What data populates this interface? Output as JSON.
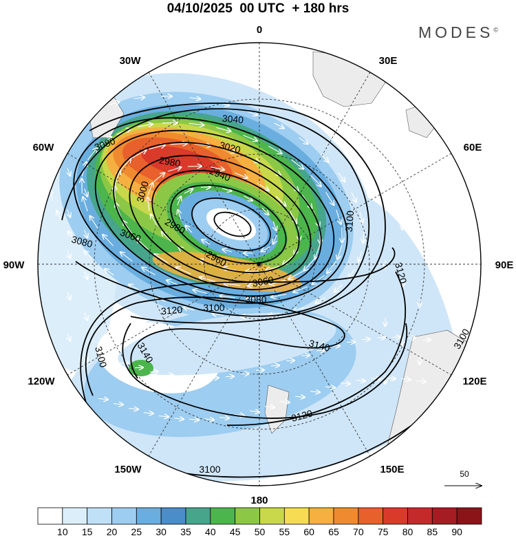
{
  "header": {
    "title": "04/10/2025  00 UTC  + 180 hrs",
    "brand": "MODES",
    "brand_mark": "©"
  },
  "longitude_labels": {
    "top": "0",
    "top_right": "30E",
    "upper_right": "60E",
    "right": "90E",
    "lower_right": "120E",
    "bottom_right": "150E",
    "bottom": "180",
    "bottom_left": "150W",
    "lower_left": "120W",
    "left": "90W",
    "upper_left": "60W",
    "top_left": "30W"
  },
  "contour_labels": [
    "2940",
    "2980",
    "2980",
    "2960",
    "3000",
    "3020",
    "3040",
    "3060",
    "3060",
    "3080",
    "3080",
    "3080",
    "3100",
    "3100",
    "3100",
    "3100",
    "3120",
    "3120",
    "3120",
    "3140",
    "3140",
    "3100"
  ],
  "wind_reference": {
    "label": "50"
  },
  "colorbar": {
    "ticks": [
      "10",
      "15",
      "20",
      "25",
      "30",
      "35",
      "40",
      "45",
      "50",
      "55",
      "60",
      "65",
      "70",
      "75",
      "80",
      "85",
      "90"
    ],
    "colors": [
      "#ffffff",
      "#dceefa",
      "#bfe0f6",
      "#9dcdf0",
      "#6aaedf",
      "#4a8dc9",
      "#47a58c",
      "#4cb54c",
      "#8cc846",
      "#c8d84a",
      "#f5dc52",
      "#f5b041",
      "#f08a30",
      "#e8602b",
      "#d93a2a",
      "#c42a2a",
      "#a51c22",
      "#8a1418"
    ]
  }
}
